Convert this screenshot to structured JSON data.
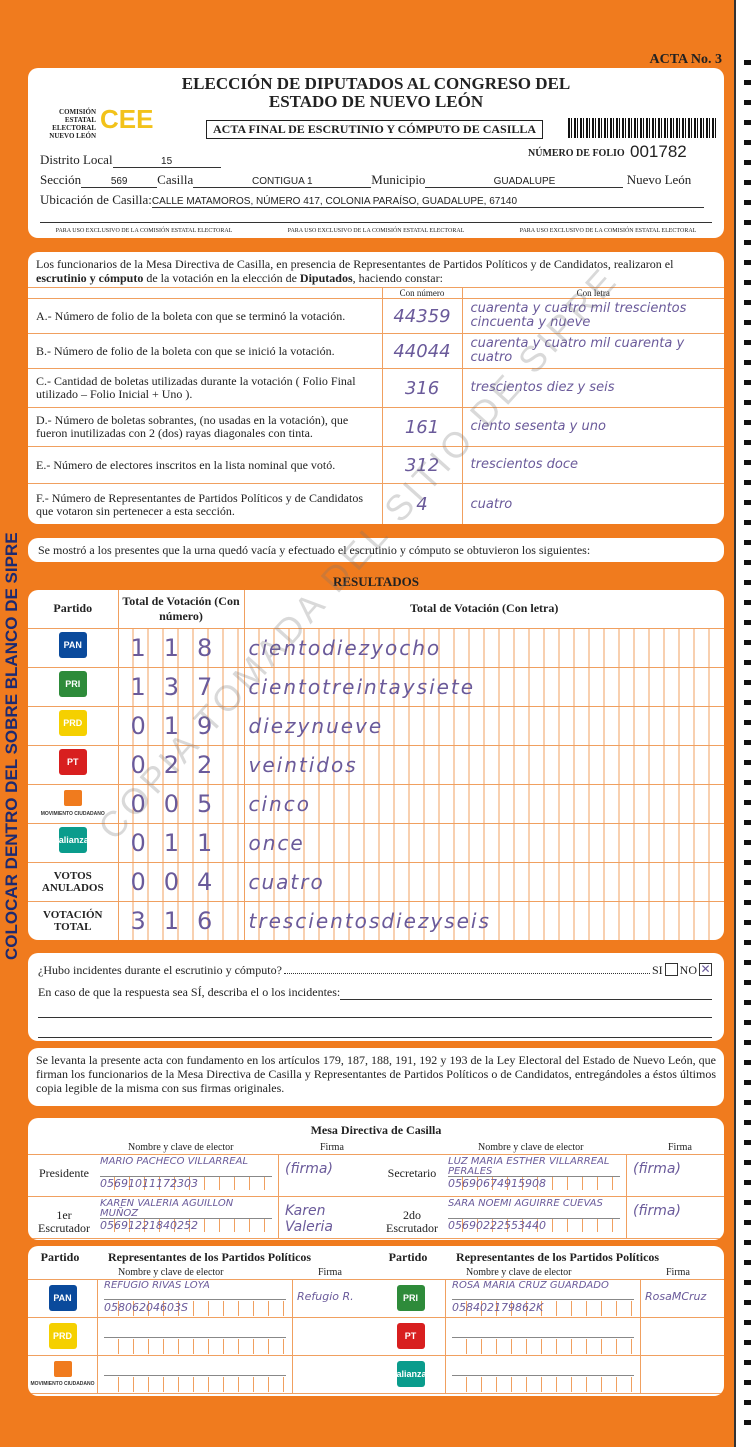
{
  "acta_no": "ACTA No. 3",
  "title_line1": "ELECCIÓN DE DIPUTADOS AL CONGRESO DEL",
  "title_line2": "ESTADO DE NUEVO LEÓN",
  "cee_org": "COMISIÓN ESTATAL ELECTORAL NUEVO LEÓN",
  "cee_logo": "CEE",
  "subtitle": "ACTA FINAL DE ESCRUTINIO Y CÓMPUTO DE CASILLA",
  "folio_label": "NÚMERO DE FOLIO",
  "folio": "001782",
  "fields": {
    "distrito_label": "Distrito Local",
    "distrito": "15",
    "seccion_label": "Sección",
    "seccion": "569",
    "casilla_label": "Casilla",
    "casilla": "CONTIGUA 1",
    "municipio_label": "Municipio",
    "municipio": "GUADALUPE",
    "estado": "Nuevo León",
    "ubicacion_label": "Ubicación de Casilla:",
    "ubicacion": "CALLE MATAMOROS, NÚMERO 417, COLONIA PARAÍSO, GUADALUPE, 67140"
  },
  "exclusive_note": "PARA USO EXCLUSIVO DE LA COMISIÓN ESTATAL ELECTORAL",
  "intro_pre": "Los funcionarios de la Mesa Directiva de Casilla, en presencia de Representantes de Partidos Políticos y de Candidatos, realizaron el ",
  "intro_bold1": "escrutinio y cómputo",
  "intro_mid": " de la votación en la elección de ",
  "intro_bold2": "Diputados",
  "intro_post": ", haciendo constar:",
  "col_numero": "Con número",
  "col_letra": "Con letra",
  "items": [
    {
      "label": "A.- Número de folio de la boleta con que se terminó la votación.",
      "numero": "44359",
      "letra": "cuarenta y cuatro mil trescientos cincuenta y nueve"
    },
    {
      "label": "B.- Número de folio de la boleta con que se inició la votación.",
      "numero": "44044",
      "letra": "cuarenta y cuatro mil cuarenta y cuatro"
    },
    {
      "label": "C.- Cantidad de boletas utilizadas durante la votación ( Folio Final utilizado – Folio Inicial + Uno ).",
      "numero": "316",
      "letra": "trescientos diez y seis"
    },
    {
      "label": "D.- Número de boletas sobrantes, (no usadas en la votación), que fueron inutilizadas con 2 (dos) rayas diagonales con tinta.",
      "numero": "161",
      "letra": "ciento sesenta y uno"
    },
    {
      "label": "E.- Número de electores inscritos en la lista nominal que votó.",
      "numero": "312",
      "letra": "trescientos doce"
    },
    {
      "label": "F.- Número de Representantes de Partidos Políticos y de Candidatos que votaron sin pertenecer a esta sección.",
      "numero": "4",
      "letra": "cuatro"
    }
  ],
  "urna_text": "Se mostró a los presentes que la urna quedó vacía y efectuado el escrutinio y cómputo se obtuvieron los siguientes:",
  "resultados_title": "RESULTADOS",
  "res_headers": {
    "partido": "Partido",
    "numero": "Total de Votación (Con número)",
    "letra": "Total de Votación (Con letra)"
  },
  "results": [
    {
      "party": "PAN",
      "color": "#0a4a9c",
      "numero": "118",
      "letra": "cientodiezyocho"
    },
    {
      "party": "PRI",
      "color": "#2e8b3a",
      "numero": "137",
      "letra": "cientotreintaysiete"
    },
    {
      "party": "PRD",
      "color": "#f5d000",
      "numero": "019",
      "letra": "diezynueve"
    },
    {
      "party": "PT",
      "color": "#d81f1f",
      "numero": "022",
      "letra": "veintidos"
    },
    {
      "party": "MOVIMIENTO CIUDADANO",
      "color": "#f07b1e",
      "numero": "005",
      "letra": "cinco"
    },
    {
      "party": "alianza",
      "color": "#0a9c8c",
      "numero": "011",
      "letra": "once"
    },
    {
      "party": "VOTOS ANULADOS",
      "color": "",
      "numero": "004",
      "letra": "cuatro"
    },
    {
      "party": "VOTACIÓN TOTAL",
      "color": "",
      "numero": "316",
      "letra": "trescientosdiezyseis"
    }
  ],
  "incidents_q": "¿Hubo incidentes durante el escrutinio y cómputo?",
  "si": "SI",
  "no": "NO",
  "no_checked": true,
  "incidents_desc": "En caso de que la respuesta sea SÍ, describa el o los incidentes:",
  "legal": "Se levanta la presente acta con fundamento en los artículos 179, 187, 188, 191, 192 y 193 de la Ley Electoral del Estado de Nuevo León, que firman los funcionarios de la Mesa Directiva de Casilla y Representantes de Partidos Políticos o de Candidatos, entregándoles a éstos últimos copia legible de la misma con sus firmas originales.",
  "mesa": {
    "title": "Mesa Directiva de Casilla",
    "nombre_hdr": "Nombre y clave de elector",
    "firma_hdr": "Firma",
    "members": [
      {
        "role": "Presidente",
        "name": "MARIO PACHECO VILLARREAL",
        "clave": "05691011172303",
        "firma": "(firma)"
      },
      {
        "role": "Secretario",
        "name": "LUZ MARIA ESTHER VILLARREAL PERALES",
        "clave": "05690674915908",
        "firma": "(firma)"
      },
      {
        "role": "1er Escrutador",
        "name": "KAREN VALERIA AGUILLON MUÑOZ",
        "clave": "05691221840252",
        "firma": "Karen Valeria"
      },
      {
        "role": "2do Escrutador",
        "name": "SARA NOEMI AGUIRRE CUEVAS",
        "clave": "05690222553440",
        "firma": "(firma)"
      }
    ]
  },
  "reps": {
    "partido_hdr": "Partido",
    "title": "Representantes de los Partidos Políticos",
    "nombre_hdr": "Nombre y clave de elector",
    "firma_hdr": "Firma",
    "left": [
      {
        "party": "PAN",
        "color": "#0a4a9c",
        "name": "REFUGIO RIVAS LOYA",
        "clave": "05806204603S",
        "firma": "Refugio R."
      },
      {
        "party": "PRD",
        "color": "#f5d000",
        "name": "",
        "clave": "",
        "firma": ""
      },
      {
        "party": "MOVIMIENTO CIUDADANO",
        "color": "#f07b1e",
        "name": "",
        "clave": "",
        "firma": ""
      }
    ],
    "right": [
      {
        "party": "PRI",
        "color": "#2e8b3a",
        "name": "ROSA MARIA CRUZ GUARDADO",
        "clave": "058402179862K",
        "firma": "RosaMCruz"
      },
      {
        "party": "PT",
        "color": "#d81f1f",
        "name": "",
        "clave": "",
        "firma": ""
      },
      {
        "party": "alianza",
        "color": "#0a9c8c",
        "name": "",
        "clave": "",
        "firma": ""
      }
    ]
  },
  "side_text": "COLOCAR DENTRO DEL SOBRE BLANCO DE SIPRE",
  "watermark": "COPIA TOMADA DEL SITIO DE SIPRE"
}
